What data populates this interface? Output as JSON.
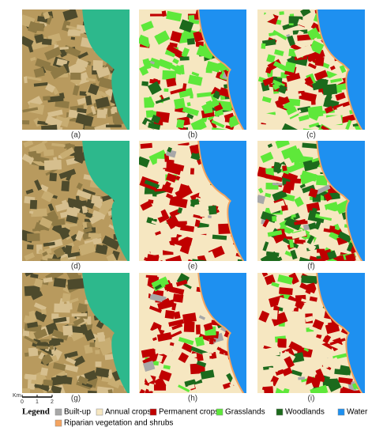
{
  "panels": [
    {
      "label": "(a)",
      "kind": "satellite"
    },
    {
      "label": "(b)",
      "kind": "map"
    },
    {
      "label": "(c)",
      "kind": "map"
    },
    {
      "label": "(d)",
      "kind": "satellite"
    },
    {
      "label": "(e)",
      "kind": "map"
    },
    {
      "label": "(f)",
      "kind": "map"
    },
    {
      "label": "(g)",
      "kind": "satellite"
    },
    {
      "label": "(h)",
      "kind": "map"
    },
    {
      "label": "(i)",
      "kind": "map"
    }
  ],
  "scale_bar": {
    "unit": "Km",
    "ticks": [
      "0",
      "1",
      "2"
    ]
  },
  "legend": {
    "title": "Legend",
    "items": [
      {
        "name": "Built-up",
        "color": "#a8a8a8"
      },
      {
        "name": "Annual crops",
        "color": "#f6e7c1"
      },
      {
        "name": "Permanent crops",
        "color": "#c00000"
      },
      {
        "name": "Grasslands",
        "color": "#5ee83a"
      },
      {
        "name": "Woodlands",
        "color": "#1c6a1c"
      },
      {
        "name": "Water",
        "color": "#1e90f0"
      },
      {
        "name": "Riparian vegetation and shrubs",
        "color": "#f4a460"
      }
    ]
  }
}
